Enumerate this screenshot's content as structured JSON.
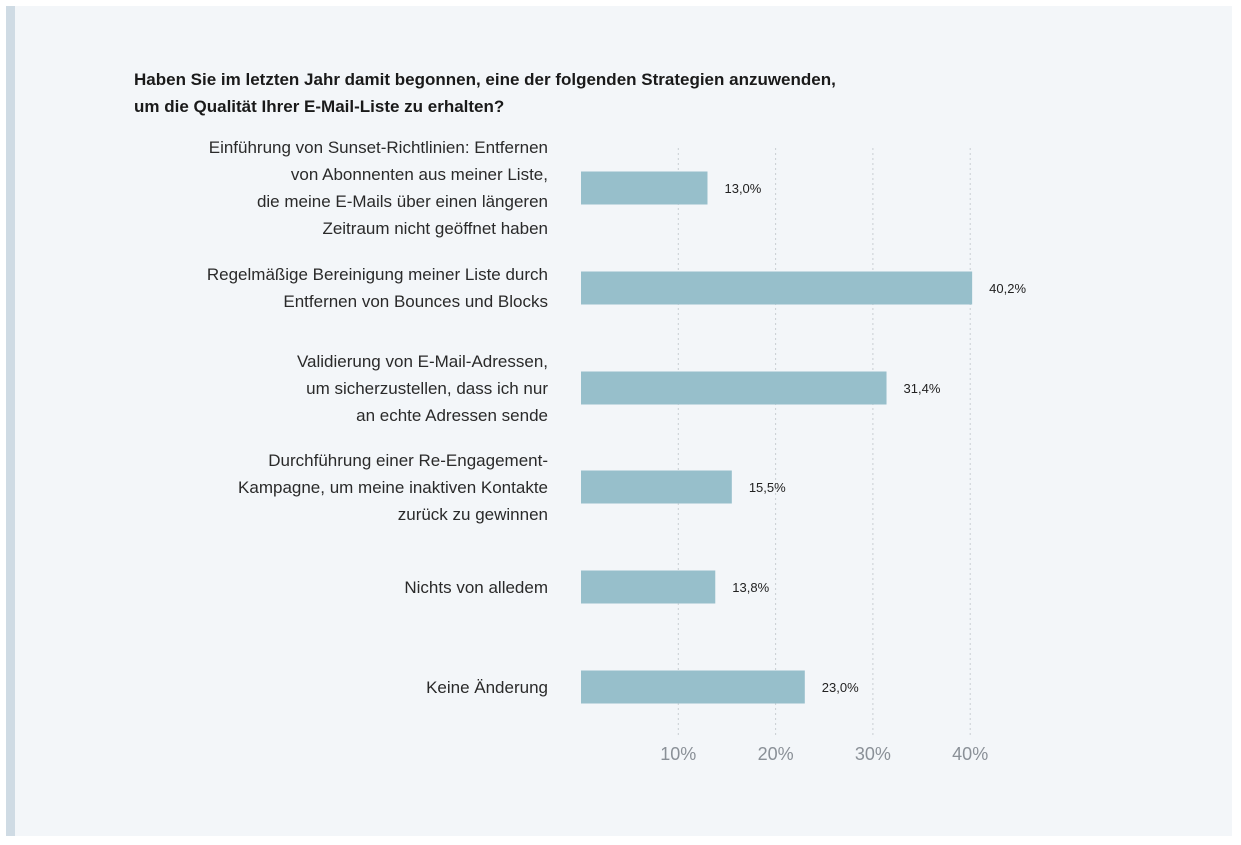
{
  "chart_data": {
    "type": "bar",
    "orientation": "horizontal",
    "title_lines": [
      "Haben Sie im letzten Jahr damit begonnen, eine der folgenden Strategien anzuwenden,",
      "um die Qualität Ihrer E-Mail-Liste zu erhalten?"
    ],
    "categories": [
      [
        "Einführung von Sunset-Richtlinien: Entfernen",
        "von Abonnenten aus meiner Liste,",
        "die meine E-Mails über einen längeren",
        "Zeitraum nicht geöffnet haben"
      ],
      [
        "Regelmäßige Bereinigung meiner Liste durch",
        "Entfernen von Bounces und Blocks"
      ],
      [
        "Validierung von E-Mail-Adressen,",
        "um sicherzustellen, dass ich nur",
        "an echte Adressen sende"
      ],
      [
        "Durchführung einer Re-Engagement-",
        "Kampagne, um meine inaktiven Kontakte",
        "zurück zu gewinnen"
      ],
      [
        "Nichts von alledem"
      ],
      [
        "Keine Änderung"
      ]
    ],
    "values": [
      13.0,
      40.2,
      31.4,
      15.5,
      13.8,
      23.0
    ],
    "value_labels": [
      "13,0%",
      "40,2%",
      "31,4%",
      "15,5%",
      "13,8%",
      "23,0%"
    ],
    "x_ticks": [
      10,
      20,
      30,
      40
    ],
    "x_tick_labels": [
      "10%",
      "20%",
      "30%",
      "40%"
    ],
    "xlim": [
      0,
      40
    ],
    "grid": "vertical dashed",
    "colors": {
      "bar": "#97bfcb",
      "grid": "#c9ced3",
      "tick_text": "#8a9097",
      "value_text": "#222222",
      "panel_bg": "#f3f6f9",
      "accent": "#cfdbe4"
    }
  }
}
